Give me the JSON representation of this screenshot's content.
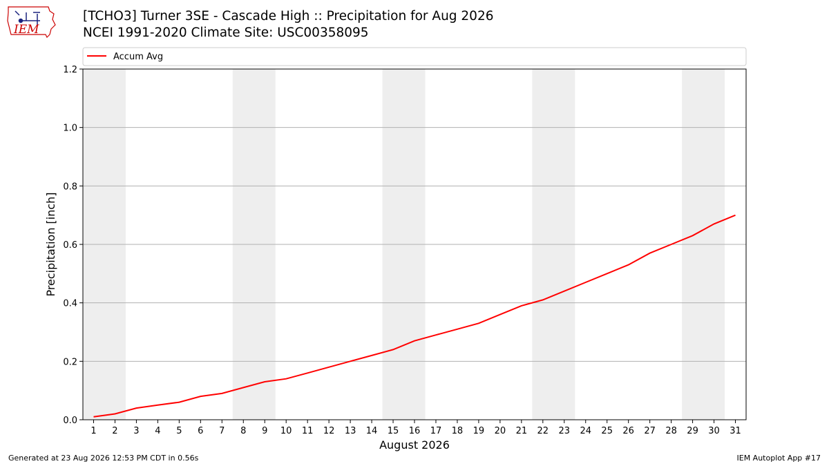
{
  "logo": {
    "text": "IEM",
    "name": "iem-logo"
  },
  "title": {
    "line1": "[TCHO3] Turner 3SE - Cascade High :: Precipitation for Aug 2026",
    "line2": "NCEI 1991-2020 Climate Site: USC00358095"
  },
  "footer": {
    "left": "Generated at 23 Aug 2026 12:53 PM CDT in 0.56s",
    "right": "IEM Autoplot App #17"
  },
  "colors": {
    "series": "#ff0000",
    "weekend_band": "#eeeeee",
    "grid": "#b0b0b0",
    "logo": "#cc0000"
  },
  "chart_data": {
    "type": "line",
    "xlabel": "August 2026",
    "ylabel": "Precipitation [inch]",
    "xlim": [
      0.5,
      31.5
    ],
    "ylim": [
      0,
      1.2
    ],
    "yticks": [
      0.0,
      0.2,
      0.4,
      0.6,
      0.8,
      1.0,
      1.2
    ],
    "ytick_labels": [
      "0.0",
      "0.2",
      "0.4",
      "0.6",
      "0.8",
      "1.0",
      "1.2"
    ],
    "xticks": [
      1,
      2,
      3,
      4,
      5,
      6,
      7,
      8,
      9,
      10,
      11,
      12,
      13,
      14,
      15,
      16,
      17,
      18,
      19,
      20,
      21,
      22,
      23,
      24,
      25,
      26,
      27,
      28,
      29,
      30,
      31
    ],
    "xtick_labels": [
      "1",
      "2",
      "3",
      "4",
      "5",
      "6",
      "7",
      "8",
      "9",
      "10",
      "11",
      "12",
      "13",
      "14",
      "15",
      "16",
      "17",
      "18",
      "19",
      "20",
      "21",
      "22",
      "23",
      "24",
      "25",
      "26",
      "27",
      "28",
      "29",
      "30",
      "31"
    ],
    "grid": "horizontal",
    "legend_position": "top",
    "shaded_bands": [
      [
        0.5,
        2.5
      ],
      [
        7.5,
        9.5
      ],
      [
        14.5,
        16.5
      ],
      [
        21.5,
        23.5
      ],
      [
        28.5,
        30.5
      ]
    ],
    "series": [
      {
        "name": "Accum Avg",
        "color": "#ff0000",
        "x": [
          1,
          2,
          3,
          4,
          5,
          6,
          7,
          8,
          9,
          10,
          11,
          12,
          13,
          14,
          15,
          16,
          17,
          18,
          19,
          20,
          21,
          22,
          23,
          24,
          25,
          26,
          27,
          28,
          29,
          30,
          31
        ],
        "values": [
          0.01,
          0.02,
          0.04,
          0.05,
          0.06,
          0.08,
          0.09,
          0.11,
          0.13,
          0.14,
          0.16,
          0.18,
          0.2,
          0.22,
          0.24,
          0.27,
          0.29,
          0.31,
          0.33,
          0.36,
          0.39,
          0.41,
          0.44,
          0.47,
          0.5,
          0.53,
          0.57,
          0.6,
          0.63,
          0.67,
          0.7
        ]
      }
    ]
  }
}
